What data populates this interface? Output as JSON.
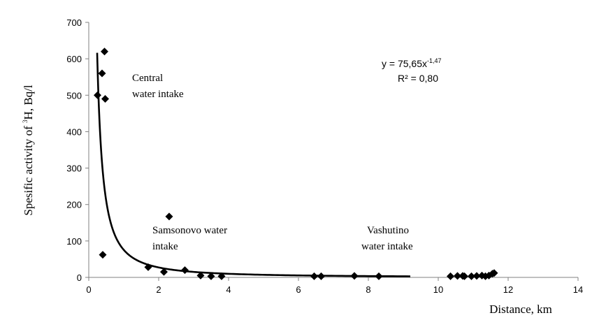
{
  "chart_data": {
    "type": "scatter",
    "title": "",
    "xlabel": "Distance, km",
    "ylabel_prefix": "Spesific activity of  ",
    "ylabel_sup": "3",
    "ylabel_suffix": "H, Bq/l",
    "xlim": [
      0,
      14
    ],
    "ylim": [
      0,
      700
    ],
    "x_ticks": [
      0,
      2,
      4,
      6,
      8,
      10,
      12,
      14
    ],
    "y_ticks": [
      0,
      100,
      200,
      300,
      400,
      500,
      600,
      700
    ],
    "grid": false,
    "legend": "none",
    "marker": "diamond",
    "points": [
      {
        "x": 0.25,
        "y": 500
      },
      {
        "x": 0.38,
        "y": 560
      },
      {
        "x": 0.45,
        "y": 620
      },
      {
        "x": 0.47,
        "y": 490
      },
      {
        "x": 0.4,
        "y": 62
      },
      {
        "x": 1.7,
        "y": 28
      },
      {
        "x": 2.15,
        "y": 15
      },
      {
        "x": 2.3,
        "y": 167
      },
      {
        "x": 2.75,
        "y": 20
      },
      {
        "x": 3.2,
        "y": 5
      },
      {
        "x": 3.5,
        "y": 3
      },
      {
        "x": 3.8,
        "y": 3
      },
      {
        "x": 6.45,
        "y": 3
      },
      {
        "x": 6.65,
        "y": 3
      },
      {
        "x": 7.6,
        "y": 4
      },
      {
        "x": 8.3,
        "y": 3
      },
      {
        "x": 10.35,
        "y": 3
      },
      {
        "x": 10.55,
        "y": 4
      },
      {
        "x": 10.7,
        "y": 4
      },
      {
        "x": 10.75,
        "y": 3
      },
      {
        "x": 10.95,
        "y": 3
      },
      {
        "x": 11.1,
        "y": 4
      },
      {
        "x": 11.25,
        "y": 5
      },
      {
        "x": 11.35,
        "y": 3
      },
      {
        "x": 11.45,
        "y": 5
      },
      {
        "x": 11.55,
        "y": 10
      },
      {
        "x": 11.6,
        "y": 12
      }
    ],
    "trendline": {
      "type": "power",
      "coefficient": 75.65,
      "exponent": -1.47,
      "x_range": [
        0.24,
        9.2
      ],
      "equation_prefix": "y = 75,65x",
      "equation_exp": "-1,47",
      "r2_label": "R² = 0,80"
    },
    "annotations": [
      {
        "lines": [
          "Central",
          "water intake"
        ]
      },
      {
        "lines": [
          "Samsonovo water",
          "intake"
        ]
      },
      {
        "lines": [
          "Vashutino",
          "water intake"
        ]
      }
    ],
    "colors": {
      "marker": "#000000",
      "line": "#000000",
      "axis": "#808080"
    }
  }
}
